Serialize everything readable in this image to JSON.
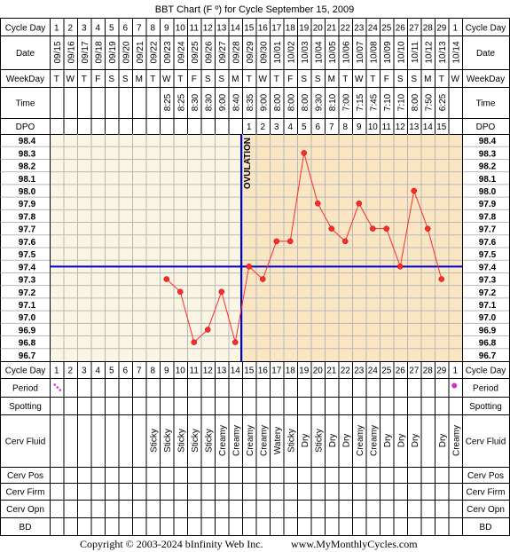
{
  "title": "BBT Chart (F º) for Cycle September 15, 2009",
  "footer": {
    "copyright": "Copyright © 2003-2024 bInfinity Web Inc.",
    "website": "www.MyMonthlyCycles.com"
  },
  "row_labels": {
    "cycle_day": "Cycle Day",
    "date": "Date",
    "weekday": "WeekDay",
    "time": "Time",
    "dpo": "DPO",
    "period": "Period",
    "spotting": "Spotting",
    "cerv_fluid": "Cerv Fluid",
    "cerv_pos": "Cerv Pos",
    "cerv_firm": "Cerv Firm",
    "cerv_opn": "Cerv Opn",
    "bd": "BD"
  },
  "ovulation_label": "OVULATION",
  "colors": {
    "pre_ovulation_bg": "#fbf6e4",
    "post_ovulation_bg": "#fbe6c3",
    "grid_line": "#b9b9b9",
    "temp_line": "#ff2a2a",
    "coverline": "#0000cc",
    "period_dot": "#cc33cc"
  },
  "chart_data": {
    "type": "line",
    "cycle_days": [
      "1",
      "2",
      "3",
      "4",
      "5",
      "6",
      "7",
      "8",
      "9",
      "10",
      "11",
      "12",
      "13",
      "14",
      "15",
      "16",
      "17",
      "18",
      "19",
      "20",
      "21",
      "22",
      "23",
      "24",
      "25",
      "26",
      "27",
      "28",
      "29",
      "1"
    ],
    "dates": [
      "09/15",
      "09/16",
      "09/17",
      "09/18",
      "09/19",
      "09/20",
      "09/21",
      "09/22",
      "09/23",
      "09/24",
      "09/25",
      "09/26",
      "09/27",
      "09/28",
      "09/29",
      "09/30",
      "10/01",
      "10/02",
      "10/03",
      "10/04",
      "10/05",
      "10/06",
      "10/07",
      "10/08",
      "10/09",
      "10/10",
      "10/11",
      "10/12",
      "10/13",
      "10/14"
    ],
    "weekdays": [
      "T",
      "W",
      "T",
      "F",
      "S",
      "S",
      "M",
      "T",
      "W",
      "T",
      "F",
      "S",
      "S",
      "M",
      "T",
      "W",
      "T",
      "F",
      "S",
      "S",
      "M",
      "T",
      "W",
      "T",
      "F",
      "S",
      "S",
      "M",
      "T",
      "W"
    ],
    "times": [
      "",
      "",
      "",
      "",
      "",
      "",
      "",
      "",
      "8:25",
      "8:25",
      "8:30",
      "8:30",
      "9:00",
      "8:40",
      "8:35",
      "9:00",
      "8:00",
      "8:00",
      "8:00",
      "9:30",
      "8:10",
      "7:00",
      "7:15",
      "7:45",
      "7:10",
      "7:10",
      "8:00",
      "7:50",
      "6:25",
      ""
    ],
    "dpo": [
      "",
      "",
      "",
      "",
      "",
      "",
      "",
      "",
      "",
      "",
      "",
      "",
      "",
      "",
      "1",
      "2",
      "3",
      "4",
      "5",
      "6",
      "7",
      "8",
      "9",
      "10",
      "11",
      "12",
      "13",
      "14",
      "15",
      ""
    ],
    "temperatures": [
      null,
      null,
      null,
      null,
      null,
      null,
      null,
      null,
      97.3,
      97.2,
      96.8,
      96.9,
      97.2,
      96.8,
      97.4,
      97.3,
      97.6,
      97.6,
      98.3,
      97.9,
      97.7,
      97.6,
      97.9,
      97.7,
      97.7,
      97.4,
      98.0,
      97.7,
      97.3,
      null
    ],
    "y_ticks": [
      "98.4",
      "98.3",
      "98.2",
      "98.1",
      "98.0",
      "97.9",
      "97.8",
      "97.7",
      "97.6",
      "97.5",
      "97.4",
      "97.3",
      "97.2",
      "97.1",
      "97.0",
      "96.9",
      "96.8",
      "96.7"
    ],
    "ylim": [
      96.7,
      98.4
    ],
    "coverline": 97.4,
    "ovulation_after_day_index": 13,
    "period": [
      "light",
      "",
      "",
      "",
      "",
      "",
      "",
      "",
      "",
      "",
      "",
      "",
      "",
      "",
      "",
      "",
      "",
      "",
      "",
      "",
      "",
      "",
      "",
      "",
      "",
      "",
      "",
      "",
      "",
      "heavy"
    ],
    "cerv_fluid": [
      "",
      "",
      "",
      "",
      "",
      "",
      "",
      "Sticky",
      "Sticky",
      "Sticky",
      "Sticky",
      "Sticky",
      "Creamy",
      "Creamy",
      "Creamy",
      "Creamy",
      "Watery",
      "Sticky",
      "Dry",
      "Sticky",
      "Dry",
      "Dry",
      "Creamy",
      "Creamy",
      "Dry",
      "Dry",
      "Dry",
      "",
      "Dry",
      "Creamy"
    ]
  }
}
